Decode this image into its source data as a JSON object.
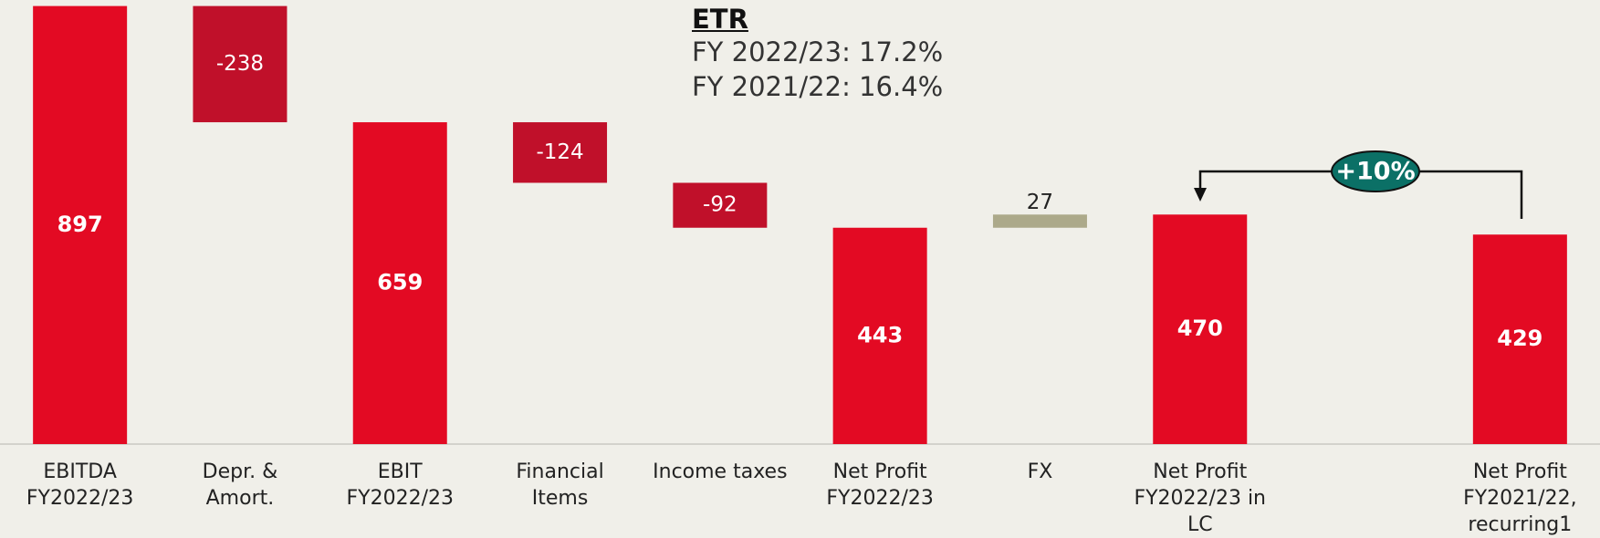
{
  "chart_data": {
    "type": "waterfall",
    "categories": [
      "EBITDA FY2022/23",
      "Depr. & Amort.",
      "EBIT FY2022/23",
      "Financial Items",
      "Income taxes",
      "Net Profit FY2022/23",
      "FX",
      "Net Profit FY2022/23 in LC",
      null,
      "Net Profit FY2021/22, recurring1"
    ],
    "values": [
      897,
      -238,
      659,
      -124,
      -92,
      443,
      27,
      470,
      null,
      429
    ],
    "measure": [
      "total",
      "relative",
      "total",
      "relative",
      "relative",
      "total",
      "relative",
      "total",
      null,
      "total"
    ],
    "colors": {
      "total": "#e30a23",
      "decrease": "#c0102a",
      "increase": "#aca98a"
    },
    "ylim": [
      0,
      900
    ],
    "annotations": {
      "etr_title": "ETR",
      "etr_lines": [
        "FY 2022/23: 17.2%",
        "FY 2021/22: 16.4%"
      ],
      "growth": "+10%"
    }
  }
}
